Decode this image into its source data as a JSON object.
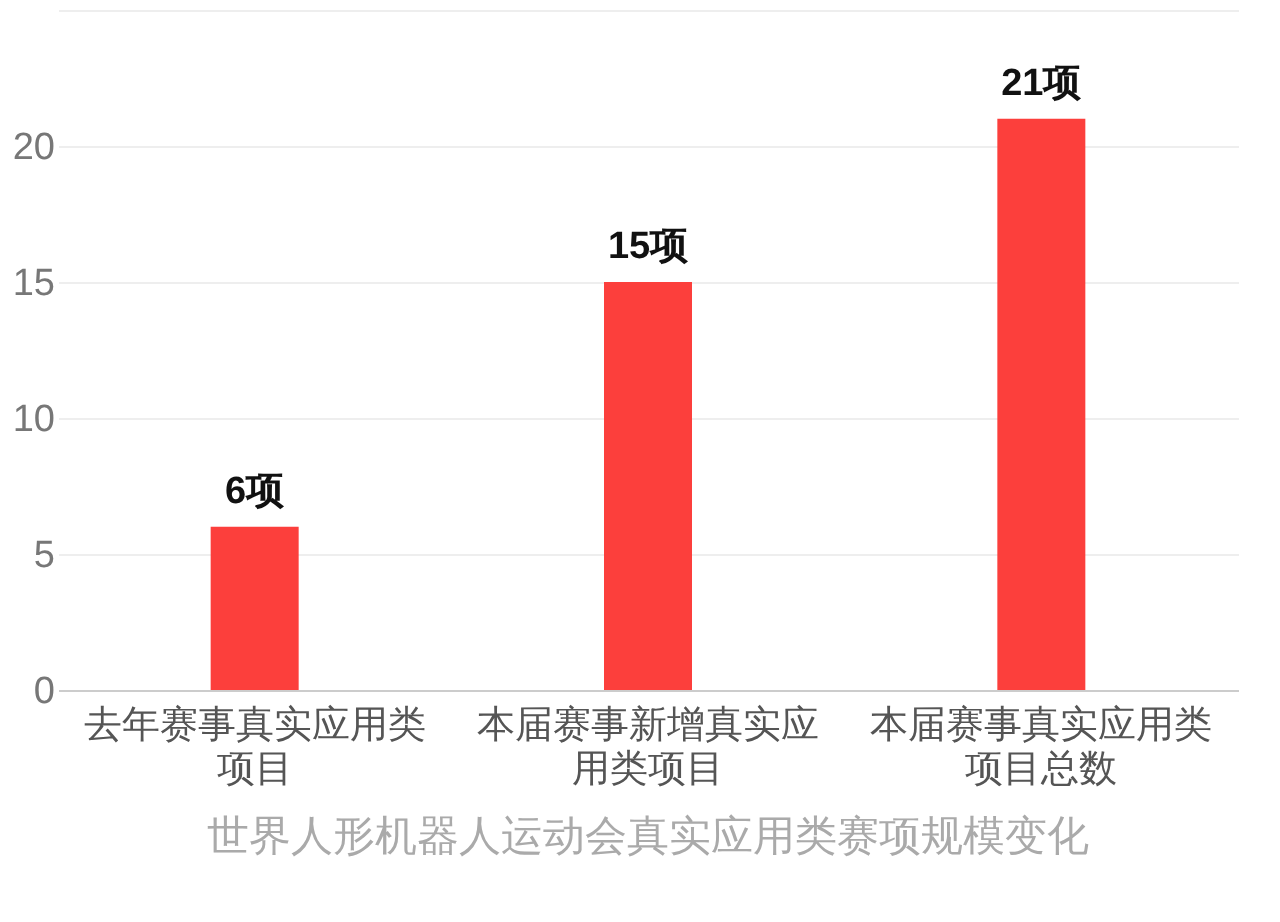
{
  "chart_data": {
    "type": "bar",
    "title": "世界人形机器人运动会真实应用类赛项规模变化",
    "categories": [
      "去年赛事真实应用类项目",
      "本届赛事新增真实应用类项目",
      "本届赛事真实应用类项目总数"
    ],
    "values": [
      6,
      15,
      21
    ],
    "color": "#fc3f3c",
    "value_labels": [
      "6项",
      "15项",
      "21项"
    ],
    "ylim": [
      0,
      25
    ],
    "yticks": [
      0,
      5,
      10,
      15,
      20,
      {
        "value": 25,
        "label": null
      }
    ],
    "grid": "y"
  }
}
